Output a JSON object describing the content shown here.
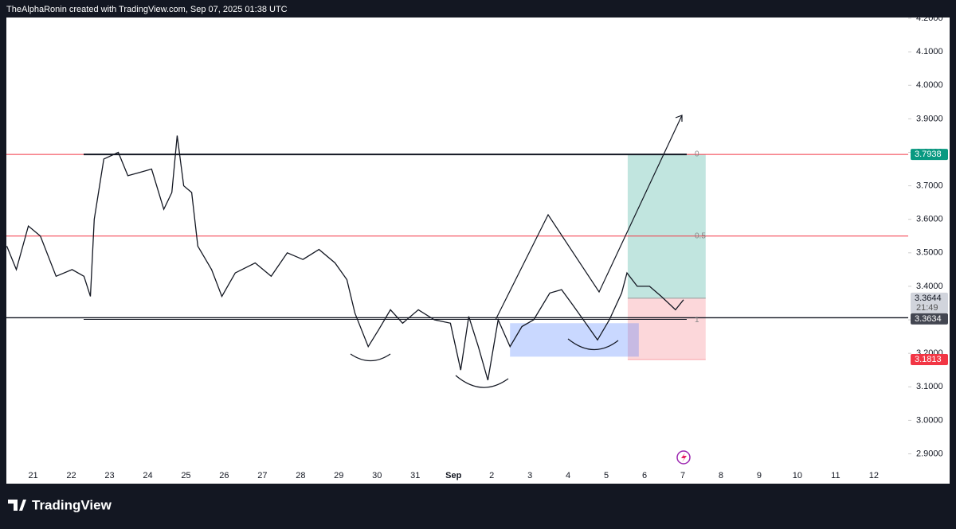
{
  "header": {
    "text": "TheAlphaRonin created with TradingView.com, Sep 07, 2025 01:38 UTC"
  },
  "chart_data": {
    "type": "line",
    "x": [
      -0.69,
      -0.44,
      -0.125,
      0.19,
      0.6,
      1.02,
      1.33,
      1.5,
      1.6,
      1.85,
      2.23,
      2.48,
      2.79,
      3.1,
      3.42,
      3.63,
      3.77,
      3.94,
      4.15,
      4.31,
      4.67,
      4.94,
      5.29,
      5.81,
      6.23,
      6.65,
      7.06,
      7.48,
      7.9,
      8.21,
      8.42,
      8.77,
      9.04,
      9.35,
      9.67,
      10.08,
      10.5,
      10.92,
      11.19,
      11.4,
      11.65,
      11.9,
      12.17,
      12.48,
      12.79,
      13.1,
      13.52,
      13.83,
      14.15,
      14.46,
      14.77,
      15.08,
      15.4,
      15.54,
      15.81,
      16.13,
      16.44,
      16.81,
      17.02
    ],
    "values": [
      3.52,
      3.45,
      3.58,
      3.55,
      3.43,
      3.45,
      3.43,
      3.37,
      3.6,
      3.78,
      3.8,
      3.73,
      3.74,
      3.75,
      3.63,
      3.68,
      3.85,
      3.7,
      3.68,
      3.52,
      3.45,
      3.37,
      3.44,
      3.47,
      3.43,
      3.5,
      3.48,
      3.51,
      3.47,
      3.42,
      3.32,
      3.22,
      3.27,
      3.33,
      3.29,
      3.33,
      3.3,
      3.29,
      3.15,
      3.31,
      3.22,
      3.12,
      3.3,
      3.22,
      3.28,
      3.3,
      3.38,
      3.39,
      3.34,
      3.29,
      3.24,
      3.3,
      3.38,
      3.44,
      3.4,
      3.4,
      3.37,
      3.33,
      3.36
    ],
    "color": "#131722",
    "xlim": [
      -0.7,
      22.9
    ],
    "ylim": [
      2.811,
      4.2
    ],
    "xticks": [
      {
        "value": 0,
        "label": "21"
      },
      {
        "value": 1,
        "label": "22"
      },
      {
        "value": 2,
        "label": "23"
      },
      {
        "value": 3,
        "label": "24"
      },
      {
        "value": 4,
        "label": "25"
      },
      {
        "value": 5,
        "label": "26"
      },
      {
        "value": 6,
        "label": "27"
      },
      {
        "value": 7,
        "label": "28"
      },
      {
        "value": 8,
        "label": "29"
      },
      {
        "value": 9,
        "label": "30"
      },
      {
        "value": 10,
        "label": "31"
      },
      {
        "value": 11,
        "label": "Sep"
      },
      {
        "value": 12,
        "label": "2"
      },
      {
        "value": 13,
        "label": "3"
      },
      {
        "value": 14,
        "label": "4"
      },
      {
        "value": 15,
        "label": "5"
      },
      {
        "value": 16,
        "label": "6"
      },
      {
        "value": 17,
        "label": "7"
      },
      {
        "value": 18,
        "label": "8"
      },
      {
        "value": 19,
        "label": "9"
      },
      {
        "value": 20,
        "label": "10"
      },
      {
        "value": 21,
        "label": "11"
      },
      {
        "value": 22,
        "label": "12"
      }
    ],
    "yticks": [
      {
        "value": 4.2,
        "label": "4.2000"
      },
      {
        "value": 4.1,
        "label": "4.1000"
      },
      {
        "value": 4.0,
        "label": "4.0000"
      },
      {
        "value": 3.9,
        "label": "3.9000"
      },
      {
        "value": 3.8,
        "label": "3.8000"
      },
      {
        "value": 3.7,
        "label": "3.7000"
      },
      {
        "value": 3.6,
        "label": "3.6000"
      },
      {
        "value": 3.5,
        "label": "3.5000"
      },
      {
        "value": 3.4,
        "label": "3.4000"
      },
      {
        "value": 3.3,
        "label": "3.3000"
      },
      {
        "value": 3.2,
        "label": "3.2000"
      },
      {
        "value": 3.1,
        "label": "3.1000"
      },
      {
        "value": 3.0,
        "label": "3.0000"
      },
      {
        "value": 2.9,
        "label": "2.9000"
      }
    ],
    "fib_levels": [
      0,
      0.5,
      1
    ],
    "fib_prices": [
      3.7938,
      3.55,
      3.3062
    ],
    "fib_color": "#f23645",
    "position": {
      "target": 3.7938,
      "entry": 3.3644,
      "stop": 3.1813
    },
    "position_x": [
      15.56,
      17.6
    ],
    "last_price": 3.3644,
    "countdown": "21:49",
    "line_price": 3.3634,
    "zone": [
      3.19,
      3.29
    ],
    "zone_x": [
      12.48,
      15.85
    ]
  },
  "footer": {
    "logo": "TradingView"
  }
}
